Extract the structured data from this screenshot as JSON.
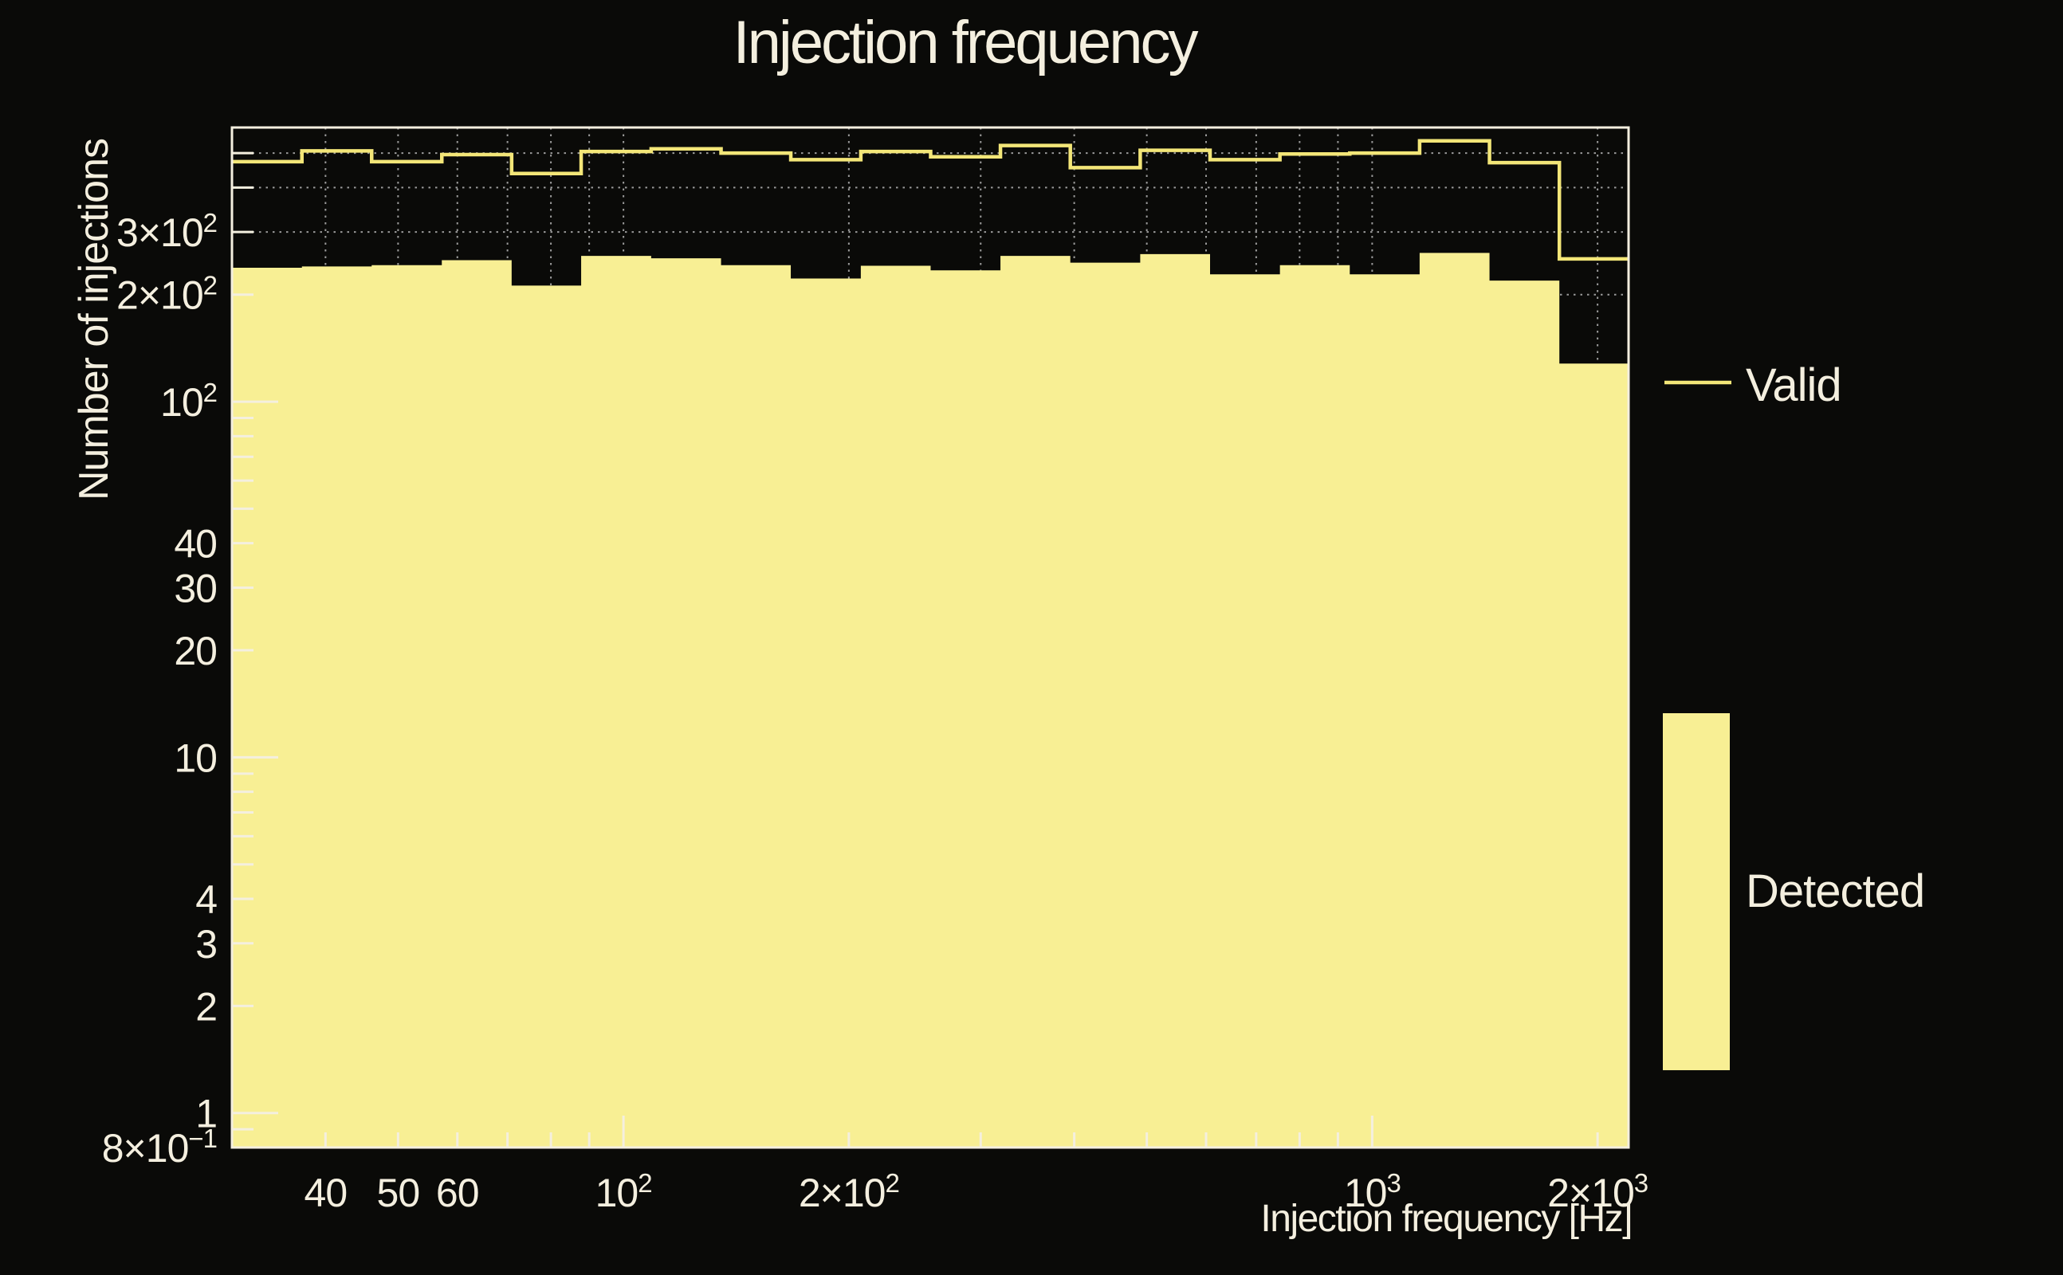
{
  "colors": {
    "background": "#0a0a08",
    "text": "#f4efdf",
    "frame": "#f4efdf",
    "grid": "#9a9a9a",
    "valid_line": "#f3e678",
    "detected_fill": "#f8ef94"
  },
  "chart_data": {
    "type": "bar",
    "subtype": "log-log histogram, one filled series and one step-line series",
    "title": "Injection frequency",
    "xlabel": "Injection frequency [Hz]",
    "ylabel": "Number of injections",
    "x_scale": "log",
    "y_scale": "log",
    "xlim": [
      30,
      2200
    ],
    "ylim": [
      0.8,
      590
    ],
    "grid": {
      "on": true,
      "style": "dotted",
      "h_lines": [
        200,
        300,
        400,
        500
      ],
      "v_lines": [
        40,
        50,
        60,
        70,
        80,
        90,
        100,
        200,
        300,
        400,
        500,
        600,
        700,
        800,
        900,
        1000,
        2000
      ]
    },
    "bin_edges": [
      30.0,
      37.2,
      46.1,
      57.2,
      70.9,
      87.8,
      108.9,
      135.0,
      167.3,
      207.5,
      257.2,
      318.8,
      395.2,
      490.0,
      607.4,
      753.0,
      933.4,
      1157.1,
      1434.5,
      1778.3,
      2200.0
    ],
    "series": [
      {
        "name": "Valid",
        "style": "step-line",
        "color": "#f3e678",
        "values": [
          473,
          507,
          473,
          495,
          438,
          505,
          514,
          500,
          479,
          505,
          488,
          525,
          455,
          509,
          479,
          497,
          500,
          541,
          470,
          252
        ]
      },
      {
        "name": "Detected",
        "style": "filled",
        "color": "#f8ef94",
        "values": [
          238,
          240,
          242,
          250,
          212,
          257,
          253,
          242,
          222,
          241,
          234,
          257,
          246,
          260,
          228,
          242,
          228,
          262,
          219,
          128
        ]
      }
    ],
    "x_ticks": {
      "labels": [
        "40",
        "50",
        "60",
        "10^2",
        "2×10^2",
        "10^3",
        "2×10^3"
      ],
      "values": [
        40,
        50,
        60,
        100,
        200,
        1000,
        2000
      ],
      "minor": [
        40,
        50,
        60,
        70,
        80,
        90,
        100,
        200,
        300,
        400,
        500,
        600,
        700,
        800,
        900,
        1000,
        2000
      ],
      "major": [
        100,
        1000
      ]
    },
    "y_ticks": {
      "labels": [
        "3×10^2",
        "2×10^2",
        "10^2",
        "40",
        "30",
        "20",
        "10",
        "4",
        "3",
        "2",
        "1",
        "8×10^−1"
      ],
      "values": [
        300,
        200,
        100,
        40,
        30,
        20,
        10,
        4,
        3,
        2,
        1,
        0.8
      ],
      "minor": [
        0.9,
        1,
        2,
        3,
        4,
        5,
        6,
        7,
        8,
        9,
        10,
        20,
        30,
        40,
        50,
        60,
        70,
        80,
        90,
        100,
        200,
        300,
        400,
        500
      ],
      "major": [
        1,
        10,
        100
      ]
    },
    "legend": {
      "position": "right",
      "entries": [
        {
          "label": "Valid",
          "marker": "line"
        },
        {
          "label": "Detected",
          "marker": "box"
        }
      ]
    }
  }
}
